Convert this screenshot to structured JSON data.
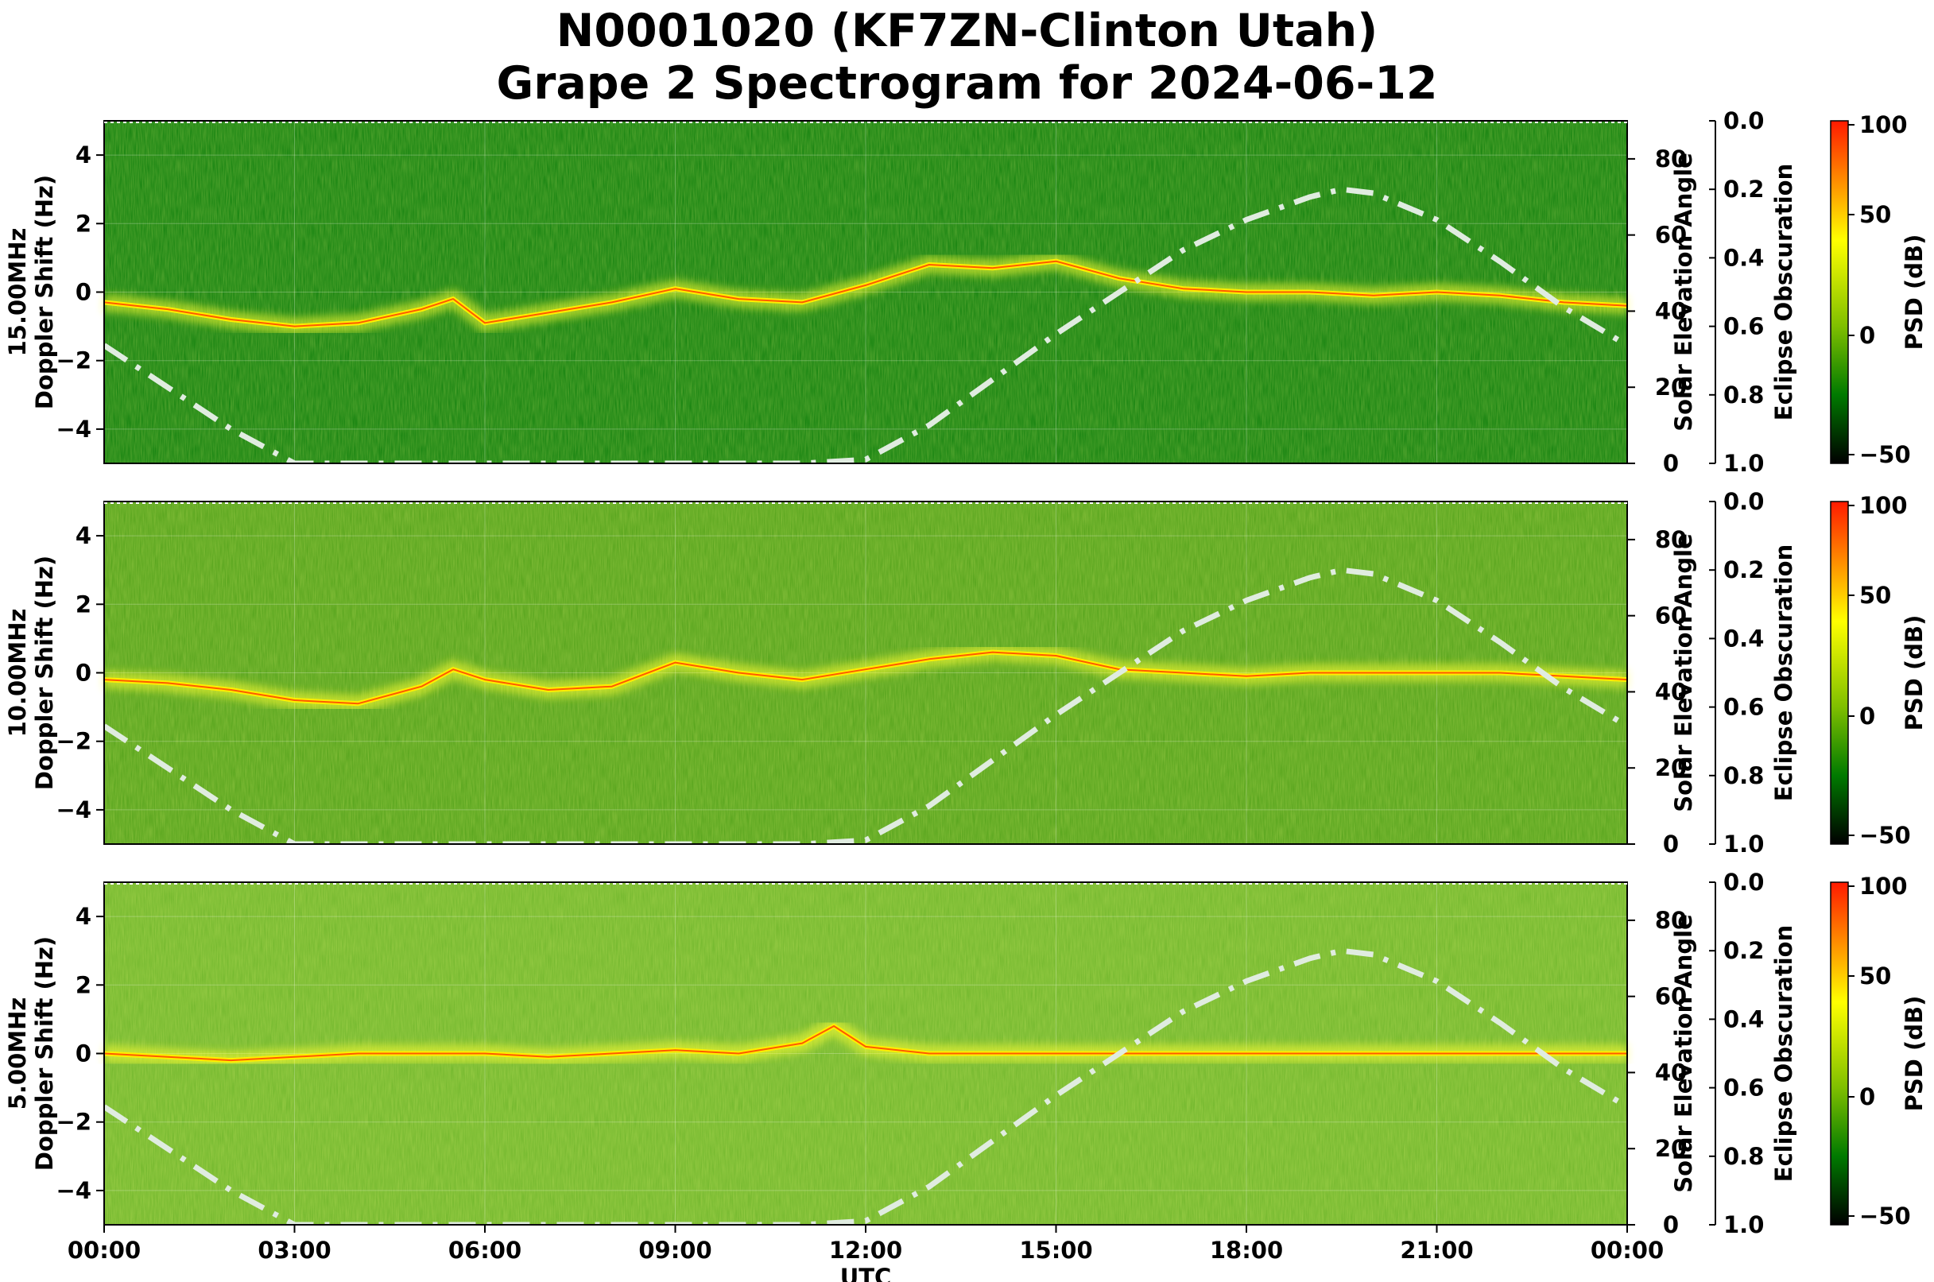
{
  "title_line1": "N0001020 (KF7ZN-Clinton Utah)",
  "title_line2": "Grape 2 Spectrogram for 2024-06-12",
  "chart_data": {
    "type": "heatmap",
    "title": "N0001020 (KF7ZN-Clinton Utah)\nGrape 2 Spectrogram for 2024-06-12",
    "xlabel": "UTC",
    "x_ticks": [
      "00:00",
      "03:00",
      "06:00",
      "09:00",
      "12:00",
      "15:00",
      "18:00",
      "21:00",
      "00:00"
    ],
    "x_range_hours": [
      0,
      24
    ],
    "y_ticks": [
      4,
      2,
      0,
      -2,
      -4
    ],
    "y_range": [
      -5,
      5
    ],
    "y2_label": "Solar Elevation Angle",
    "y2_ticks": [
      80,
      60,
      40,
      20,
      0
    ],
    "y2_range": [
      0,
      90
    ],
    "y3_label": "Eclipse Obscuration",
    "y3_ticks": [
      "0.0",
      "0.2",
      "0.4",
      "0.6",
      "0.8",
      "1.0"
    ],
    "colorbar_label": "PSD (dB)",
    "colorbar_ticks": [
      "100",
      "50",
      "0",
      "−50"
    ],
    "colorbar_colors": [
      "#ff1a00",
      "#ffff00",
      "#7fbf00",
      "#007a00",
      "#000000"
    ],
    "solar_elevation": {
      "style": "dash-dot",
      "color": "#e0ece0",
      "hours": [
        0,
        1,
        2,
        3,
        4,
        5,
        6,
        7,
        8,
        9,
        10,
        11,
        12,
        13,
        14,
        15,
        16,
        17,
        18,
        19,
        19.5,
        20,
        21,
        22,
        23,
        24
      ],
      "degrees": [
        31,
        20,
        9,
        0,
        0,
        0,
        0,
        0,
        0,
        0,
        0,
        0,
        1,
        10,
        22,
        34,
        45,
        56,
        64,
        70,
        72,
        71,
        64,
        53,
        41,
        31
      ]
    },
    "panels": [
      {
        "ylabel_top": "15.00MHz",
        "ylabel_bottom": "Doppler Shift (Hz)",
        "background": "#0b7d0b",
        "signal_trace": {
          "hours": [
            0,
            1,
            2,
            3,
            4,
            5,
            5.5,
            6,
            7,
            8,
            9,
            10,
            11,
            12,
            13,
            14,
            15,
            16,
            17,
            18,
            19,
            20,
            21,
            22,
            23,
            24
          ],
          "hz": [
            -0.3,
            -0.5,
            -0.8,
            -1.0,
            -0.9,
            -0.5,
            -0.2,
            -0.9,
            -0.6,
            -0.3,
            0.1,
            -0.2,
            -0.3,
            0.2,
            0.8,
            0.7,
            0.9,
            0.4,
            0.1,
            0.0,
            0.0,
            -0.1,
            0.0,
            -0.1,
            -0.3,
            -0.4
          ]
        }
      },
      {
        "ylabel_top": "10.00MHz",
        "ylabel_bottom": "Doppler Shift (Hz)",
        "background": "#4fa018",
        "signal_trace": {
          "hours": [
            0,
            1,
            2,
            3,
            4,
            5,
            5.5,
            6,
            7,
            8,
            9,
            10,
            11,
            12,
            13,
            14,
            15,
            16,
            17,
            18,
            19,
            20,
            21,
            22,
            23,
            24
          ],
          "hz": [
            -0.2,
            -0.3,
            -0.5,
            -0.8,
            -0.9,
            -0.4,
            0.1,
            -0.2,
            -0.5,
            -0.4,
            0.3,
            0.0,
            -0.2,
            0.1,
            0.4,
            0.6,
            0.5,
            0.1,
            0.0,
            -0.1,
            0.0,
            0.0,
            0.0,
            0.0,
            -0.1,
            -0.2
          ]
        }
      },
      {
        "ylabel_top": "5.00MHz",
        "ylabel_bottom": "Doppler Shift (Hz)",
        "background": "#6db52a",
        "signal_trace": {
          "hours": [
            0,
            1,
            2,
            3,
            4,
            5,
            6,
            7,
            8,
            9,
            10,
            11,
            11.5,
            12,
            13,
            14,
            15,
            16,
            17,
            18,
            19,
            20,
            21,
            22,
            23,
            24
          ],
          "hz": [
            0.0,
            -0.1,
            -0.2,
            -0.1,
            0.0,
            0.0,
            0.0,
            -0.1,
            0.0,
            0.1,
            0.0,
            0.3,
            0.8,
            0.2,
            0.0,
            0.0,
            0.0,
            0.0,
            0.0,
            0.0,
            0.0,
            0.0,
            0.0,
            0.0,
            0.0,
            0.0
          ]
        }
      }
    ]
  }
}
